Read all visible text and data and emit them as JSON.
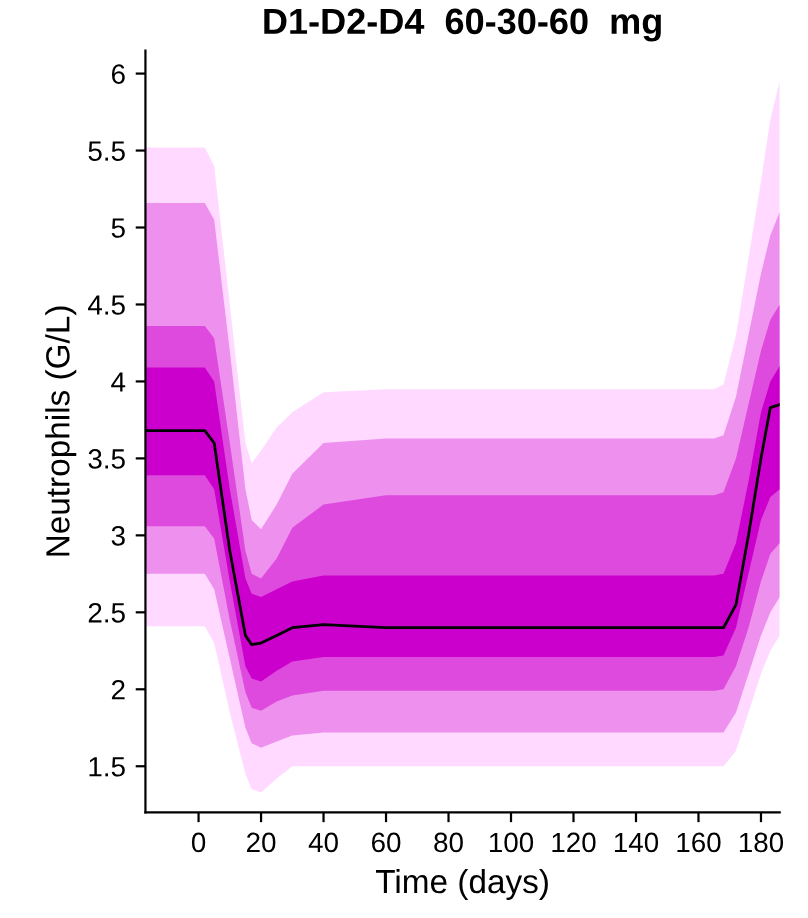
{
  "chart_data": {
    "type": "line",
    "title": "D1-D2-D4  60-30-60  mg",
    "xlabel": "Time (days)",
    "ylabel": "Neutrophils (G/L)",
    "x": [
      -17,
      2,
      5,
      10,
      15,
      17,
      20,
      25,
      30,
      40,
      60,
      100,
      140,
      165,
      168,
      172,
      176,
      180,
      183,
      186
    ],
    "xlim": [
      -17,
      186
    ],
    "xticks": [
      0,
      20,
      40,
      60,
      80,
      100,
      120,
      140,
      160,
      180
    ],
    "ylim": [
      1.2,
      6.15
    ],
    "yticks": [
      1.5,
      2,
      2.5,
      3,
      3.5,
      4,
      4.5,
      5,
      5.5,
      6
    ],
    "grid": false,
    "legend": false,
    "series": [
      {
        "type": "line",
        "color": "#ffd9ff",
        "values": [
          null,
          null,
          null,
          null,
          null,
          null,
          null,
          null,
          null,
          null,
          null,
          null,
          null,
          null,
          null,
          null,
          null,
          null,
          null,
          null
        ],
        "lower": [
          2.41,
          2.41,
          2.3,
          1.85,
          1.45,
          1.35,
          1.33,
          1.42,
          1.5,
          1.5,
          1.5,
          1.5,
          1.5,
          1.5,
          1.5,
          1.6,
          1.85,
          2.1,
          2.25,
          2.35
        ],
        "upper": [
          5.52,
          5.52,
          5.4,
          4.5,
          3.6,
          3.47,
          3.55,
          3.7,
          3.8,
          3.93,
          3.95,
          3.95,
          3.95,
          3.95,
          3.98,
          4.3,
          4.8,
          5.3,
          5.7,
          5.95
        ]
      },
      {
        "type": "line",
        "color": "#ee90ee",
        "values": [
          null,
          null,
          null,
          null,
          null,
          null,
          null,
          null,
          null,
          null,
          null,
          null,
          null,
          null,
          null,
          null,
          null,
          null,
          null,
          null
        ],
        "lower": [
          2.75,
          2.75,
          2.65,
          2.2,
          1.75,
          1.65,
          1.62,
          1.66,
          1.7,
          1.72,
          1.72,
          1.72,
          1.72,
          1.72,
          1.72,
          1.85,
          2.1,
          2.35,
          2.5,
          2.6
        ],
        "upper": [
          5.16,
          5.16,
          5.05,
          4.2,
          3.3,
          3.1,
          3.04,
          3.2,
          3.4,
          3.6,
          3.63,
          3.63,
          3.63,
          3.63,
          3.65,
          3.9,
          4.3,
          4.7,
          4.95,
          5.1
        ]
      },
      {
        "type": "line",
        "color": "#dd4add",
        "values": [
          null,
          null,
          null,
          null,
          null,
          null,
          null,
          null,
          null,
          null,
          null,
          null,
          null,
          null,
          null,
          null,
          null,
          null,
          null,
          null
        ],
        "lower": [
          3.06,
          3.06,
          2.98,
          2.45,
          1.98,
          1.88,
          1.86,
          1.92,
          1.96,
          1.99,
          1.99,
          1.99,
          1.99,
          1.99,
          2.0,
          2.15,
          2.4,
          2.7,
          2.88,
          2.95
        ],
        "upper": [
          4.36,
          4.36,
          4.28,
          3.6,
          2.9,
          2.75,
          2.72,
          2.85,
          3.05,
          3.2,
          3.26,
          3.26,
          3.26,
          3.26,
          3.28,
          3.5,
          3.85,
          4.2,
          4.4,
          4.5
        ]
      },
      {
        "type": "line",
        "color": "#cc00cc",
        "values": [
          null,
          null,
          null,
          null,
          null,
          null,
          null,
          null,
          null,
          null,
          null,
          null,
          null,
          null,
          null,
          null,
          null,
          null,
          null,
          null
        ],
        "lower": [
          3.39,
          3.39,
          3.3,
          2.7,
          2.15,
          2.07,
          2.05,
          2.12,
          2.18,
          2.21,
          2.21,
          2.21,
          2.21,
          2.21,
          2.22,
          2.4,
          2.75,
          3.1,
          3.25,
          3.3
        ],
        "upper": [
          4.09,
          4.09,
          4.0,
          3.3,
          2.72,
          2.62,
          2.6,
          2.65,
          2.7,
          2.74,
          2.74,
          2.74,
          2.74,
          2.74,
          2.75,
          2.95,
          3.35,
          3.8,
          4.0,
          4.1
        ]
      },
      {
        "color": "#000000",
        "values": [
          3.68,
          3.68,
          3.6,
          2.9,
          2.35,
          2.29,
          2.3,
          2.35,
          2.4,
          2.42,
          2.4,
          2.4,
          2.4,
          2.4,
          2.4,
          2.55,
          3.0,
          3.5,
          3.83,
          3.85
        ]
      }
    ]
  }
}
